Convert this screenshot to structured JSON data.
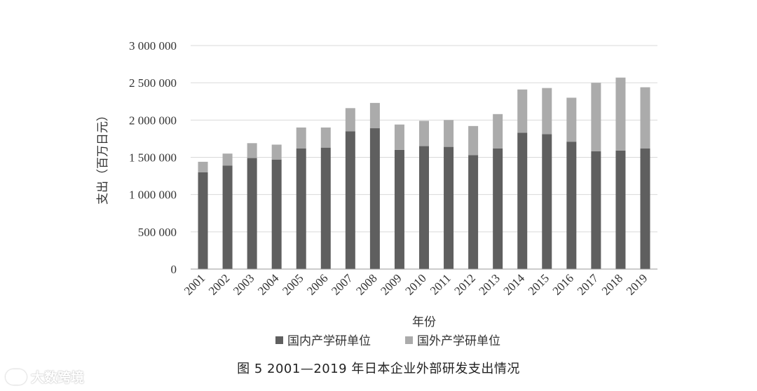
{
  "chart_data": {
    "type": "bar",
    "stacked": true,
    "caption": "图 5   2001—2019 年日本企业外部研发支出情况",
    "xlabel": "年份",
    "ylabel": "支出（百万日元）",
    "ylim": [
      0,
      3000000
    ],
    "yticks": [
      {
        "value": 0,
        "label": "0"
      },
      {
        "value": 500000,
        "label": "500 000"
      },
      {
        "value": 1000000,
        "label": "1 000 000"
      },
      {
        "value": 1500000,
        "label": "1 500 000"
      },
      {
        "value": 2000000,
        "label": "2 000 000"
      },
      {
        "value": 2500000,
        "label": "2 500 000"
      },
      {
        "value": 3000000,
        "label": "3 000 000"
      }
    ],
    "grid": true,
    "legend_position": "bottom",
    "categories": [
      "2001",
      "2002",
      "2003",
      "2004",
      "2005",
      "2006",
      "2007",
      "2008",
      "2009",
      "2010",
      "2011",
      "2012",
      "2013",
      "2014",
      "2015",
      "2016",
      "2017",
      "2018",
      "2019"
    ],
    "series": [
      {
        "name": "国内产学研单位",
        "color": "#5f5f5f",
        "values": [
          1300000,
          1390000,
          1490000,
          1470000,
          1620000,
          1630000,
          1850000,
          1890000,
          1600000,
          1650000,
          1640000,
          1530000,
          1620000,
          1830000,
          1810000,
          1710000,
          1580000,
          1590000,
          1620000
        ]
      },
      {
        "name": "国外产学研单位",
        "color": "#ababab",
        "values": [
          140000,
          160000,
          200000,
          200000,
          280000,
          270000,
          310000,
          340000,
          340000,
          340000,
          360000,
          390000,
          460000,
          580000,
          620000,
          590000,
          920000,
          980000,
          820000
        ]
      }
    ]
  },
  "watermark": {
    "text": "大数跨境"
  }
}
